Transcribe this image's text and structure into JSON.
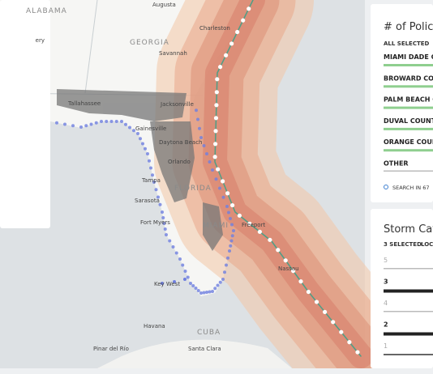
{
  "map": {
    "labels": [
      "ALABAMA",
      "ery",
      "Augusta",
      "GEORGIA",
      "Charleston",
      "Savannah",
      "Tallahassee",
      "Jacksonville",
      "Gainesville",
      "Daytona Beach",
      "Orlando",
      "Tampa",
      "FLORIDA",
      "Sarasota",
      "Fort Myers",
      "MIAMI",
      "Freeport",
      "Nassau",
      "Key West",
      "Havana",
      "CUBA",
      "Pinar del Río",
      "Santa Clara"
    ]
  },
  "policies": {
    "title": "# of Policie",
    "status": "ALL SELECTED",
    "items": [
      "MIAMI DADE C",
      "BROWARD COU",
      "PALM BEACH C",
      "DUVAL COUNT",
      "ORANGE COUN",
      "OTHER"
    ],
    "search": "SEARCH IN 67"
  },
  "storm": {
    "title": "Storm Cate",
    "status": "3 SELECTED",
    "action": "LOC",
    "levels": [
      "5",
      "3",
      "4",
      "2",
      "1"
    ]
  }
}
